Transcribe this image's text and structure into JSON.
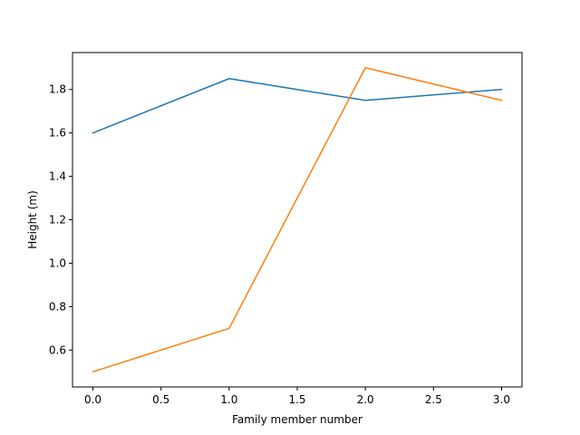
{
  "chart_data": {
    "type": "line",
    "title": "",
    "xlabel": "Family member number",
    "ylabel": "Height (m)",
    "x": [
      0,
      1,
      2,
      3
    ],
    "xlim": [
      -0.15,
      3.15
    ],
    "ylim": [
      0.43,
      1.97
    ],
    "xticks": [
      0.0,
      0.5,
      1.0,
      1.5,
      2.0,
      2.5,
      3.0
    ],
    "xtick_labels": [
      "0.0",
      "0.5",
      "1.0",
      "1.5",
      "2.0",
      "2.5",
      "3.0"
    ],
    "yticks": [
      0.6,
      0.8,
      1.0,
      1.2,
      1.4,
      1.6,
      1.8
    ],
    "ytick_labels": [
      "0.6",
      "0.8",
      "1.0",
      "1.2",
      "1.4",
      "1.6",
      "1.8"
    ],
    "grid": false,
    "legend": "none",
    "series": [
      {
        "values": [
          1.6,
          1.85,
          1.75,
          1.8
        ],
        "color": "#1f77b4"
      },
      {
        "values": [
          0.5,
          0.7,
          1.9,
          1.75
        ],
        "color": "#ff7f0e"
      }
    ]
  }
}
